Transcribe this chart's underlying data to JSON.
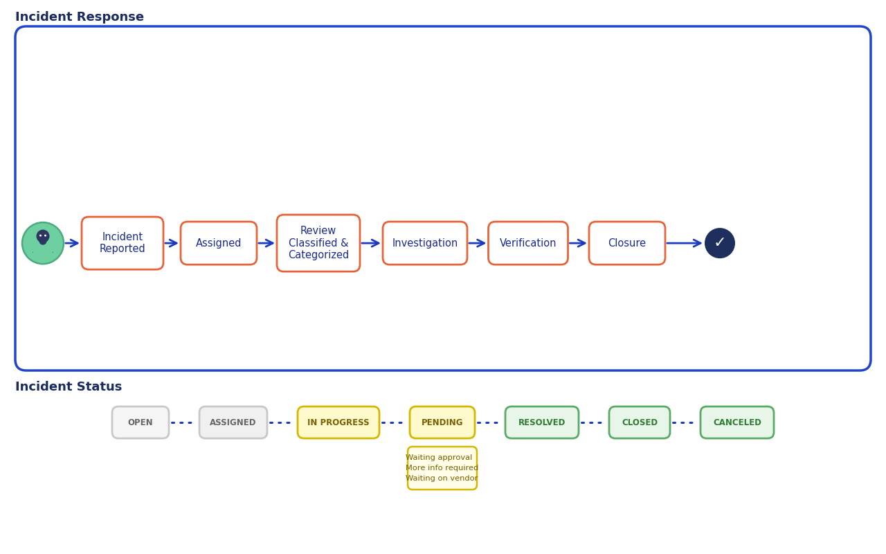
{
  "title_response": "Incident Response",
  "title_status": "Incident Status",
  "bg_color": "#ffffff",
  "outer_box_edge": "#2244cc",
  "outer_box_face": "#ffffff",
  "flow_steps": [
    "Incident\nReported",
    "Assigned",
    "Review\nClassified &\nCategorized",
    "Investigation",
    "Verification",
    "Closure"
  ],
  "step_box_edge": "#e8633a",
  "step_text_color": "#1a2b8f",
  "arrow_color": "#1a3bbf",
  "person_bg": "#6ecfa0",
  "person_border": "#4aaa80",
  "checkmark_bg": "#1e2f5e",
  "status_items": [
    {
      "label": "OPEN",
      "border": "#c8c8c8",
      "bg": "#f5f5f5",
      "text": "#666666"
    },
    {
      "label": "ASSIGNED",
      "border": "#c8c8c8",
      "bg": "#f0f0f0",
      "text": "#666666"
    },
    {
      "label": "IN PROGRESS",
      "border": "#d4b800",
      "bg": "#fffacc",
      "text": "#7a6000"
    },
    {
      "label": "PENDING",
      "border": "#d4b800",
      "bg": "#fffacc",
      "text": "#7a6000"
    },
    {
      "label": "RESOLVED",
      "border": "#5aaa66",
      "bg": "#e8f5e9",
      "text": "#2e7d32"
    },
    {
      "label": "CLOSED",
      "border": "#5aaa66",
      "bg": "#e8f5e9",
      "text": "#2e7d32"
    },
    {
      "label": "CANCELED",
      "border": "#5aaa66",
      "bg": "#e8f5e9",
      "text": "#2e7d32"
    }
  ],
  "pending_note": [
    "Waiting approval",
    "More info required",
    "Waiting on vendor"
  ],
  "pending_note_border": "#d4b800",
  "pending_note_bg": "#fffde7",
  "pending_note_text": "#7a6000",
  "dotted_line_color": "#1a3bbf"
}
